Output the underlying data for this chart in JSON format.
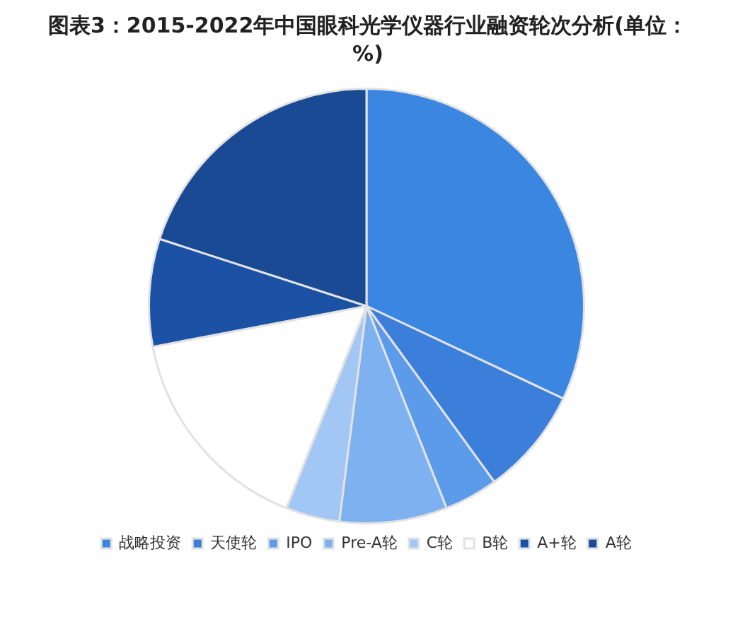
{
  "chart_data": {
    "type": "pie",
    "title": "图表3：2015-2022年中国眼科光学仪器行业融资轮次分析(单位：%)",
    "categories": [
      "战略投资",
      "天使轮",
      "IPO",
      "Pre-A轮",
      "C轮",
      "B轮",
      "A+轮",
      "A轮"
    ],
    "values": [
      32,
      8,
      4,
      8,
      4,
      16,
      8,
      20
    ],
    "colors": [
      "#3a86e0",
      "#3b7fdb",
      "#5b9be9",
      "#7eb1ef",
      "#a3c7f4",
      "#ffffff",
      "#1b52a6",
      "#1a4a94"
    ],
    "legend": "bottom"
  }
}
